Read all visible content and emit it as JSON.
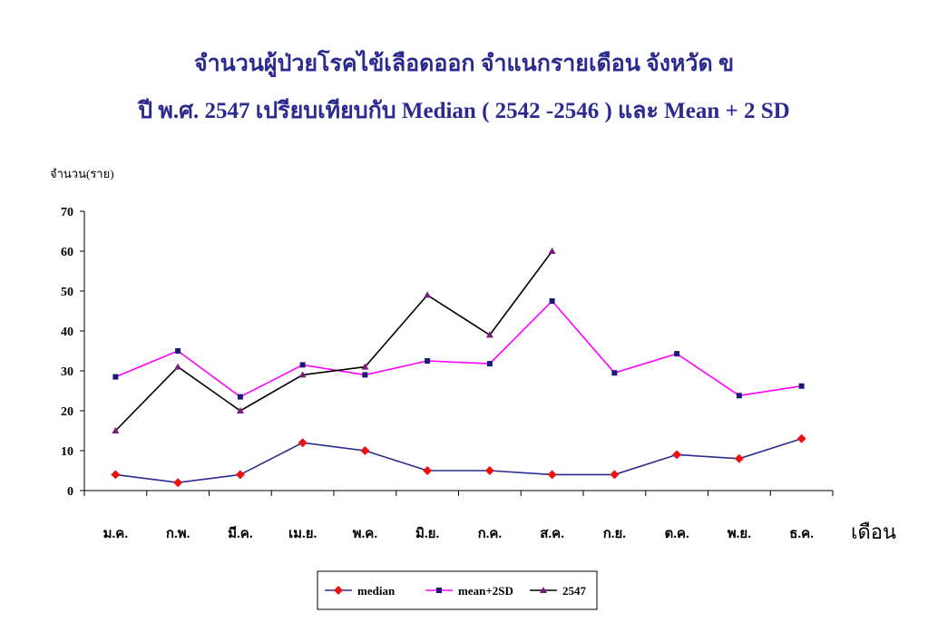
{
  "chart_data": {
    "type": "line",
    "title_line1": "จำนวนผู้ป่วยโรคไข้เลือดออก จำแนกรายเดือน จังหวัด ข",
    "title_line2": "ปี พ.ศ. 2547 เปรียบเทียบกับ Median ( 2542 -2546 ) และ Mean + 2 SD",
    "ylabel": "จำนวน(ราย)",
    "xlabel": "เดือน",
    "ylim": [
      0,
      70
    ],
    "yticks": [
      0,
      10,
      20,
      30,
      40,
      50,
      60,
      70
    ],
    "grid": false,
    "legend_position": "bottom-center",
    "categories": [
      "ม.ค.",
      "ก.พ.",
      "มี.ค.",
      "เม.ย.",
      "พ.ค.",
      "มิ.ย.",
      "ก.ค.",
      "ส.ค.",
      "ก.ย.",
      "ต.ค.",
      "พ.ย.",
      "ธ.ค."
    ],
    "series": [
      {
        "name": "median",
        "color": "#2b2b8f",
        "marker": "diamond",
        "marker_color": "#ee1111",
        "values": [
          4,
          2,
          4,
          12,
          10,
          5,
          5,
          4,
          4,
          9,
          8,
          13
        ]
      },
      {
        "name": "mean+2SD",
        "color": "#ff00ff",
        "marker": "square",
        "marker_color": "#1a1a7a",
        "values": [
          28.5,
          35,
          23.5,
          31.5,
          29,
          32.5,
          31.8,
          47.5,
          29.5,
          34.3,
          23.8,
          26.2
        ]
      },
      {
        "name": "2547",
        "color": "#000000",
        "marker": "triangle",
        "marker_color": "#7a1a7a",
        "values": [
          15,
          31,
          20,
          29,
          31,
          49,
          39,
          60,
          null,
          null,
          null,
          null
        ]
      }
    ]
  }
}
